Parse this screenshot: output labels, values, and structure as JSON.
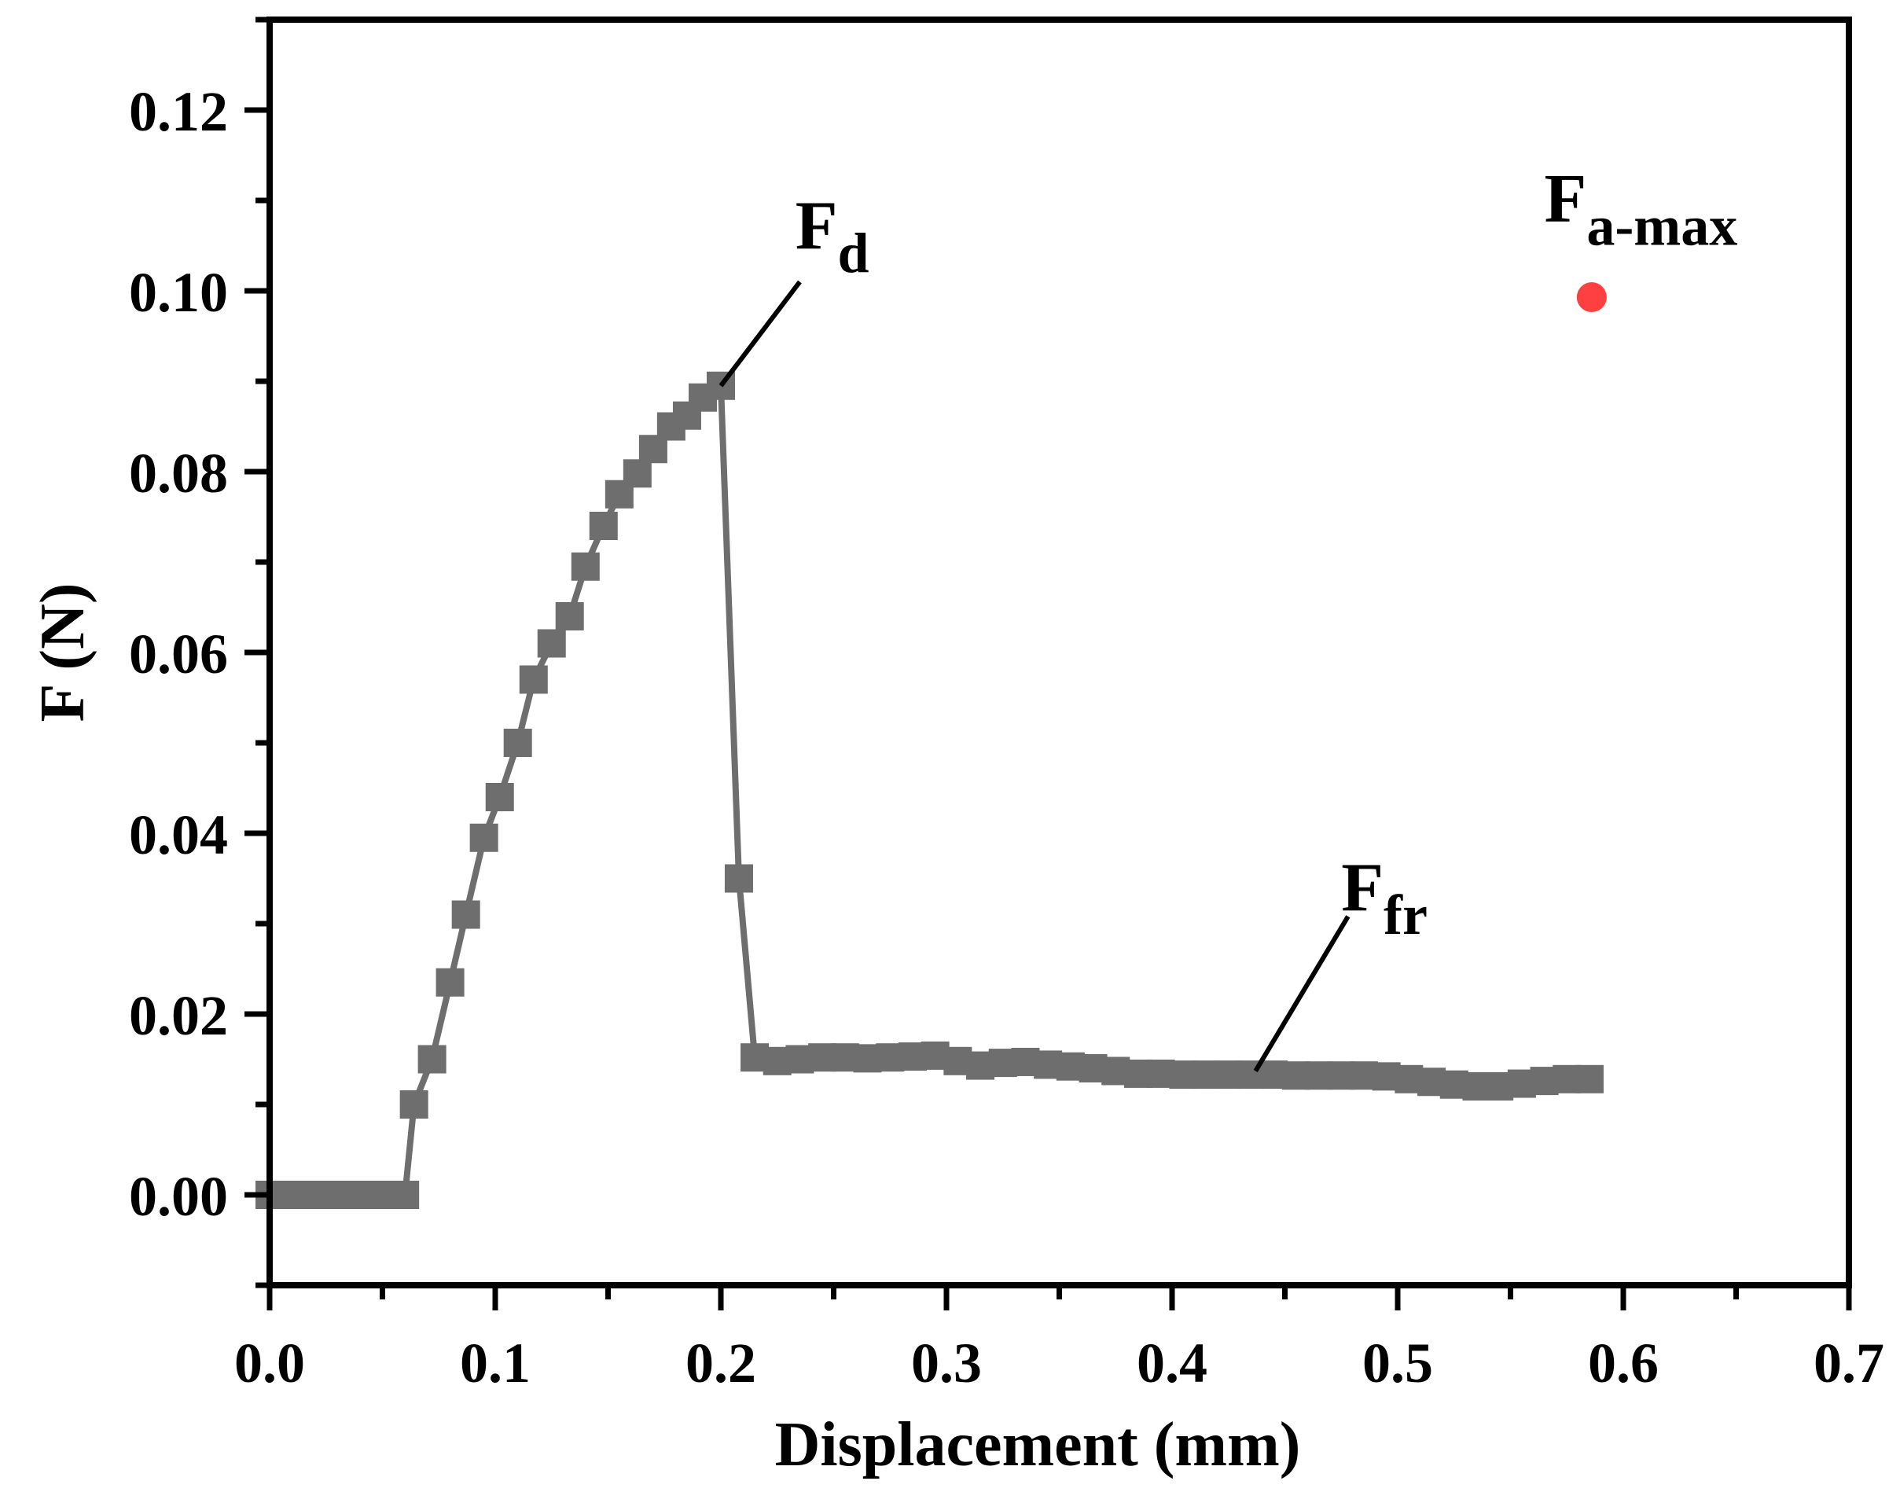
{
  "chart_data": {
    "type": "scatter",
    "xlabel": "Displacement (mm)",
    "ylabel": "F (N)",
    "xlim": [
      0,
      0.7
    ],
    "ylim": [
      -0.01,
      0.13
    ],
    "xticks": [
      "0.0",
      "0.1",
      "0.2",
      "0.3",
      "0.4",
      "0.5",
      "0.6",
      "0.7"
    ],
    "yticks": [
      "0.00",
      "0.02",
      "0.04",
      "0.06",
      "0.08",
      "0.10",
      "0.12"
    ],
    "xtick_values": [
      0,
      0.1,
      0.2,
      0.3,
      0.4,
      0.5,
      0.6,
      0.7
    ],
    "ytick_values": [
      0,
      0.02,
      0.04,
      0.06,
      0.08,
      0.1,
      0.12
    ],
    "grid": false,
    "legend": "none",
    "series": [
      {
        "color": "#6e6e6e",
        "marker": "square",
        "x": [
          0.0,
          0.012,
          0.024,
          0.036,
          0.048,
          0.06,
          0.064,
          0.072,
          0.08,
          0.087,
          0.095,
          0.102,
          0.11,
          0.117,
          0.125,
          0.133,
          0.14,
          0.148,
          0.155,
          0.163,
          0.17,
          0.178,
          0.185,
          0.192,
          0.2,
          0.208,
          0.215,
          0.225,
          0.235,
          0.245,
          0.255,
          0.265,
          0.275,
          0.285,
          0.295,
          0.305,
          0.315,
          0.325,
          0.335,
          0.345,
          0.355,
          0.365,
          0.375,
          0.385,
          0.395,
          0.405,
          0.415,
          0.425,
          0.435,
          0.445,
          0.455,
          0.465,
          0.475,
          0.485,
          0.495,
          0.505,
          0.515,
          0.525,
          0.535,
          0.545,
          0.555,
          0.565,
          0.575,
          0.585
        ],
        "y": [
          0.0,
          0.0,
          0.0,
          0.0,
          0.0,
          0.0,
          0.01,
          0.015,
          0.0235,
          0.031,
          0.0395,
          0.044,
          0.05,
          0.057,
          0.061,
          0.064,
          0.0695,
          0.074,
          0.0775,
          0.0798,
          0.0825,
          0.085,
          0.0862,
          0.0882,
          0.0895,
          0.035,
          0.0152,
          0.0148,
          0.015,
          0.0152,
          0.0152,
          0.0151,
          0.0152,
          0.0153,
          0.0154,
          0.0148,
          0.0143,
          0.0146,
          0.0147,
          0.0144,
          0.0142,
          0.014,
          0.0137,
          0.0134,
          0.0134,
          0.0133,
          0.0133,
          0.0133,
          0.0133,
          0.0133,
          0.0132,
          0.0132,
          0.0132,
          0.0132,
          0.0131,
          0.0128,
          0.0125,
          0.0122,
          0.012,
          0.012,
          0.0123,
          0.0126,
          0.0128,
          0.0128
        ]
      },
      {
        "color": "#ff4040",
        "marker": "circle",
        "x": [
          0.586
        ],
        "y": [
          0.0993
        ]
      }
    ],
    "annotations": [
      {
        "main": "F",
        "sub": "d",
        "x": 0.233,
        "y": 0.1047,
        "line": [
          [
            0.2,
            0.0895
          ],
          [
            0.235,
            0.101
          ]
        ]
      },
      {
        "main": "F",
        "sub": "fr",
        "x": 0.475,
        "y": 0.0315,
        "line": [
          [
            0.437,
            0.0137
          ],
          [
            0.478,
            0.0308
          ]
        ]
      },
      {
        "main": "F",
        "sub": "a-max",
        "x": 0.565,
        "y": 0.1077,
        "line": null
      }
    ]
  }
}
